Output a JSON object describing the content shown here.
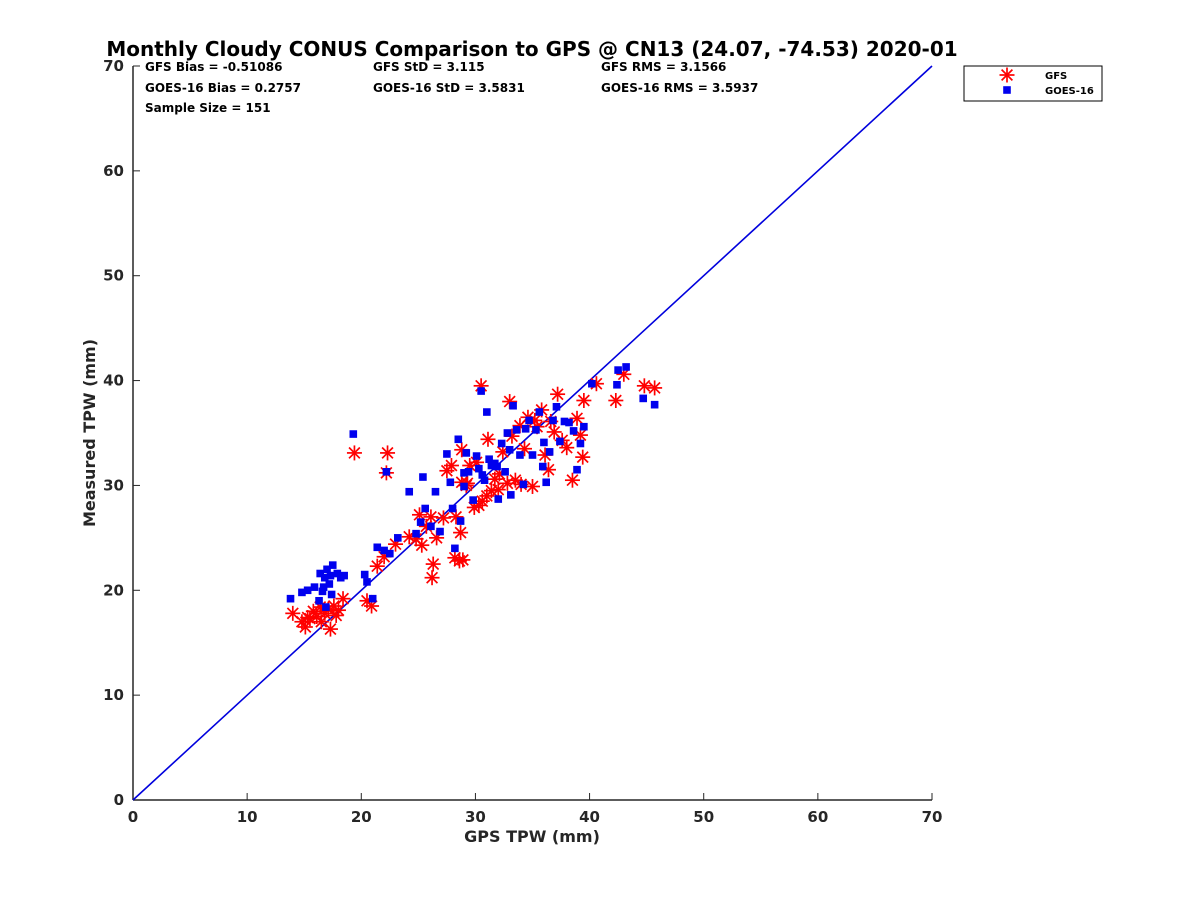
{
  "chart_data": {
    "type": "scatter",
    "title": "Monthly Cloudy CONUS Comparison to GPS @ CN13 (24.07, -74.53) 2020-01",
    "xlabel": "GPS TPW (mm)",
    "ylabel": "Measured TPW (mm)",
    "xlim": [
      0,
      70
    ],
    "ylim": [
      0,
      70
    ],
    "xticks": [
      0,
      10,
      20,
      30,
      40,
      50,
      60,
      70
    ],
    "yticks": [
      0,
      10,
      20,
      30,
      40,
      50,
      60,
      70
    ],
    "grid": false,
    "legend_position": "outside-top-right",
    "stats": [
      "GFS Bias = -0.51086",
      "GFS StD = 3.115",
      "GFS RMS = 3.1566",
      "GOES-16 Bias = 0.2757",
      "GOES-16 StD = 3.5831",
      "GOES-16 RMS = 3.5937",
      "Sample Size = 151"
    ],
    "reference_line": {
      "x": [
        0,
        70
      ],
      "y": [
        0,
        70
      ],
      "color": "#0000dd"
    },
    "series": [
      {
        "name": "GFS",
        "marker": "asterisk",
        "color": "#ff0000",
        "points": [
          [
            14.0,
            17.8
          ],
          [
            14.8,
            17.0
          ],
          [
            15.1,
            16.5
          ],
          [
            15.5,
            17.3
          ],
          [
            15.8,
            18.0
          ],
          [
            16.1,
            17.5
          ],
          [
            16.4,
            18.4
          ],
          [
            16.8,
            17.8
          ],
          [
            17.1,
            18.2
          ],
          [
            17.3,
            16.3
          ],
          [
            17.6,
            18.5
          ],
          [
            18.0,
            18.1
          ],
          [
            18.4,
            19.2
          ],
          [
            16.5,
            17.0
          ],
          [
            15.3,
            17.4
          ],
          [
            17.8,
            17.6
          ],
          [
            20.5,
            19.0
          ],
          [
            20.9,
            18.5
          ],
          [
            21.4,
            22.3
          ],
          [
            22.0,
            23.2
          ],
          [
            19.4,
            33.1
          ],
          [
            22.3,
            33.1
          ],
          [
            22.2,
            31.2
          ],
          [
            23.0,
            24.4
          ],
          [
            24.2,
            25.1
          ],
          [
            24.8,
            24.9
          ],
          [
            25.3,
            24.3
          ],
          [
            25.7,
            26.1
          ],
          [
            26.1,
            27.0
          ],
          [
            26.6,
            25.0
          ],
          [
            26.3,
            22.5
          ],
          [
            26.2,
            21.2
          ],
          [
            25.1,
            27.2
          ],
          [
            27.5,
            31.4
          ],
          [
            27.9,
            31.9
          ],
          [
            28.2,
            23.1
          ],
          [
            28.6,
            22.8
          ],
          [
            28.9,
            22.9
          ],
          [
            28.7,
            25.5
          ],
          [
            28.3,
            27.0
          ],
          [
            28.8,
            30.3
          ],
          [
            29.2,
            30.0
          ],
          [
            29.5,
            31.9
          ],
          [
            29.9,
            27.9
          ],
          [
            30.3,
            28.1
          ],
          [
            30.6,
            28.5
          ],
          [
            30.1,
            32.2
          ],
          [
            30.5,
            39.5
          ],
          [
            31.0,
            29.0
          ],
          [
            31.4,
            29.5
          ],
          [
            31.7,
            30.6
          ],
          [
            32.1,
            31.1
          ],
          [
            32.4,
            33.2
          ],
          [
            32.8,
            30.2
          ],
          [
            33.2,
            34.7
          ],
          [
            33.5,
            30.5
          ],
          [
            33.0,
            38.0
          ],
          [
            33.9,
            35.7
          ],
          [
            34.3,
            33.5
          ],
          [
            34.6,
            36.5
          ],
          [
            35.0,
            29.9
          ],
          [
            35.4,
            35.6
          ],
          [
            35.8,
            37.2
          ],
          [
            36.1,
            32.9
          ],
          [
            36.4,
            31.5
          ],
          [
            36.9,
            35.1
          ],
          [
            37.2,
            38.7
          ],
          [
            37.6,
            34.3
          ],
          [
            38.0,
            33.6
          ],
          [
            38.5,
            30.5
          ],
          [
            38.9,
            36.4
          ],
          [
            39.2,
            34.8
          ],
          [
            39.4,
            32.7
          ],
          [
            39.5,
            38.1
          ],
          [
            40.6,
            39.7
          ],
          [
            42.3,
            38.1
          ],
          [
            43.0,
            40.6
          ],
          [
            44.8,
            39.5
          ],
          [
            45.7,
            39.3
          ],
          [
            28.8,
            33.4
          ],
          [
            31.1,
            34.4
          ],
          [
            32.0,
            29.6
          ],
          [
            34.0,
            30.1
          ],
          [
            35.2,
            36.2
          ],
          [
            36.6,
            36.1
          ],
          [
            29.3,
            30.2
          ],
          [
            27.2,
            26.9
          ]
        ]
      },
      {
        "name": "GOES-16",
        "marker": "square",
        "color": "#0000ee",
        "points": [
          [
            13.8,
            19.2
          ],
          [
            14.8,
            19.8
          ],
          [
            15.3,
            20.0
          ],
          [
            15.9,
            20.3
          ],
          [
            16.3,
            19.0
          ],
          [
            16.6,
            19.9
          ],
          [
            16.8,
            21.2
          ],
          [
            17.0,
            22.0
          ],
          [
            17.2,
            20.6
          ],
          [
            17.5,
            22.4
          ],
          [
            17.9,
            21.6
          ],
          [
            18.2,
            21.2
          ],
          [
            16.9,
            18.4
          ],
          [
            17.4,
            19.6
          ],
          [
            18.5,
            21.4
          ],
          [
            16.4,
            21.6
          ],
          [
            19.3,
            34.9
          ],
          [
            20.3,
            21.5
          ],
          [
            20.5,
            20.8
          ],
          [
            21.0,
            19.2
          ],
          [
            21.4,
            24.1
          ],
          [
            22.0,
            23.8
          ],
          [
            22.2,
            31.3
          ],
          [
            22.5,
            23.5
          ],
          [
            23.2,
            25.0
          ],
          [
            24.2,
            29.4
          ],
          [
            24.8,
            25.4
          ],
          [
            25.2,
            26.5
          ],
          [
            25.4,
            30.8
          ],
          [
            25.6,
            27.8
          ],
          [
            26.1,
            26.1
          ],
          [
            26.5,
            29.4
          ],
          [
            26.9,
            25.6
          ],
          [
            27.5,
            33.0
          ],
          [
            28.0,
            27.8
          ],
          [
            28.2,
            24.0
          ],
          [
            28.5,
            34.4
          ],
          [
            28.7,
            26.6
          ],
          [
            29.0,
            31.2
          ],
          [
            29.2,
            33.1
          ],
          [
            29.4,
            31.3
          ],
          [
            29.8,
            28.6
          ],
          [
            30.1,
            32.8
          ],
          [
            30.3,
            31.6
          ],
          [
            30.5,
            39.0
          ],
          [
            30.8,
            30.5
          ],
          [
            31.0,
            37.0
          ],
          [
            31.2,
            32.5
          ],
          [
            31.4,
            31.9
          ],
          [
            31.7,
            32.1
          ],
          [
            32.0,
            28.7
          ],
          [
            32.3,
            34.0
          ],
          [
            32.6,
            31.3
          ],
          [
            32.8,
            35.0
          ],
          [
            33.1,
            29.1
          ],
          [
            33.3,
            37.6
          ],
          [
            33.6,
            35.3
          ],
          [
            33.9,
            32.9
          ],
          [
            34.2,
            30.1
          ],
          [
            34.4,
            35.4
          ],
          [
            34.7,
            36.2
          ],
          [
            35.0,
            32.9
          ],
          [
            35.3,
            35.3
          ],
          [
            35.6,
            37.0
          ],
          [
            35.9,
            31.8
          ],
          [
            36.2,
            30.3
          ],
          [
            36.5,
            33.2
          ],
          [
            36.8,
            36.2
          ],
          [
            37.1,
            37.5
          ],
          [
            37.4,
            34.2
          ],
          [
            37.8,
            36.1
          ],
          [
            38.2,
            36.0
          ],
          [
            38.6,
            35.2
          ],
          [
            38.9,
            31.5
          ],
          [
            39.2,
            34.0
          ],
          [
            39.5,
            35.6
          ],
          [
            40.2,
            39.7
          ],
          [
            42.4,
            39.6
          ],
          [
            42.5,
            41.0
          ],
          [
            43.2,
            41.3
          ],
          [
            44.7,
            38.3
          ],
          [
            45.7,
            37.7
          ],
          [
            17.3,
            21.4
          ],
          [
            16.7,
            20.3
          ],
          [
            29.0,
            29.9
          ],
          [
            30.6,
            31.0
          ],
          [
            33.0,
            33.4
          ],
          [
            36.0,
            34.1
          ],
          [
            31.9,
            31.8
          ],
          [
            27.8,
            30.3
          ]
        ]
      }
    ]
  }
}
